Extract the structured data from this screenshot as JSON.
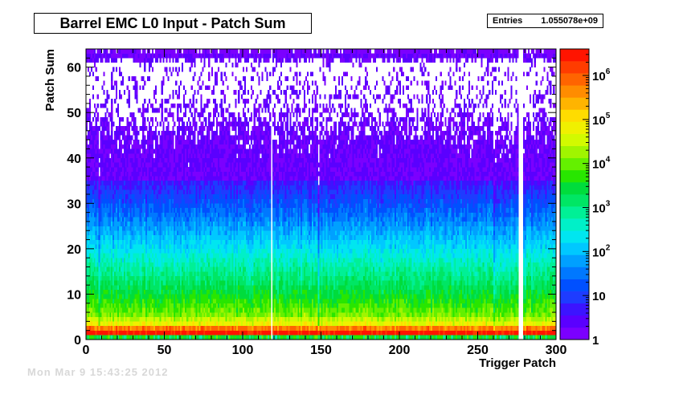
{
  "title": "Barrel EMC L0 Input - Patch Sum",
  "stats": {
    "label": "Entries",
    "value": "1.055078e+09"
  },
  "footer_stamp": "Mon Mar  9 15:43:25 2012",
  "chart_data": {
    "type": "heatmap",
    "title": "Barrel EMC L0 Input - Patch Sum",
    "xlabel": "Trigger Patch",
    "ylabel": "Patch Sum",
    "xlim": [
      0,
      300
    ],
    "ylim": [
      0,
      64
    ],
    "x_ticks": [
      0,
      50,
      100,
      150,
      200,
      250,
      300
    ],
    "y_ticks": [
      0,
      10,
      20,
      30,
      40,
      50,
      60
    ],
    "z_scale": "log",
    "zlim": [
      1,
      4000000
    ],
    "z_ticks": [
      {
        "value": 1,
        "base": "1",
        "exp": ""
      },
      {
        "value": 10,
        "base": "10",
        "exp": ""
      },
      {
        "value": 100,
        "base": "10",
        "exp": "2"
      },
      {
        "value": 1000,
        "base": "10",
        "exp": "3"
      },
      {
        "value": 10000,
        "base": "10",
        "exp": "4"
      },
      {
        "value": 100000,
        "base": "10",
        "exp": "5"
      },
      {
        "value": 1000000,
        "base": "10",
        "exp": "6"
      }
    ],
    "entries": "1.055078e+09",
    "empty_columns": [
      118,
      276,
      277,
      278
    ],
    "weak_columns": [
      8,
      148,
      260,
      300
    ],
    "profile": [
      {
        "y": 0,
        "count": 1800
      },
      {
        "y": 1,
        "count": 3000000
      },
      {
        "y": 2,
        "count": 600000
      },
      {
        "y": 3,
        "count": 60000
      },
      {
        "y": 5,
        "count": 12000
      },
      {
        "y": 10,
        "count": 2500
      },
      {
        "y": 15,
        "count": 700
      },
      {
        "y": 20,
        "count": 180
      },
      {
        "y": 25,
        "count": 50
      },
      {
        "y": 30,
        "count": 14
      },
      {
        "y": 35,
        "count": 4
      },
      {
        "y": 40,
        "count": 1.6
      },
      {
        "y": 45,
        "count": 0.8
      },
      {
        "y": 50,
        "count": 0.35
      },
      {
        "y": 55,
        "count": 0.22
      },
      {
        "y": 60,
        "count": 0.15
      },
      {
        "y": 63,
        "count": 9
      }
    ],
    "palette": [
      "#7b00ff",
      "#5a00ff",
      "#3c14ff",
      "#1e3cff",
      "#0050ff",
      "#0078ff",
      "#00a0ff",
      "#00c8ff",
      "#00e6f0",
      "#00f0c8",
      "#00f096",
      "#00e664",
      "#00dc3c",
      "#28e600",
      "#64f000",
      "#a0f500",
      "#d2fa00",
      "#f0f000",
      "#ffdc00",
      "#ffb400",
      "#ff8c00",
      "#ff6400",
      "#ff3c00",
      "#ff1400"
    ]
  }
}
